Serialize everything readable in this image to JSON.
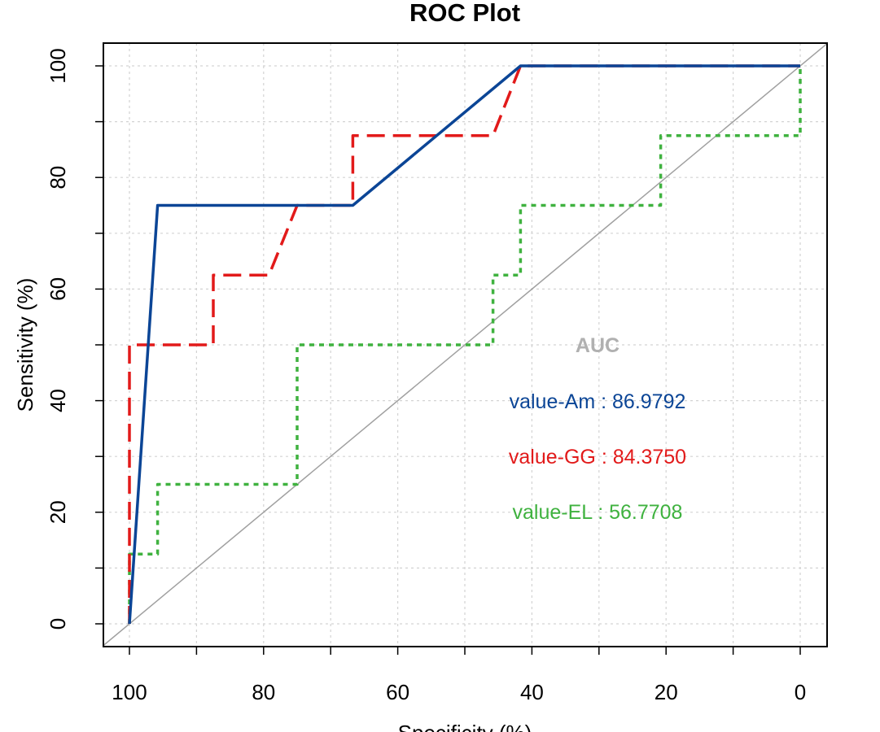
{
  "chart_data": {
    "type": "line",
    "title": "ROC Plot",
    "xlabel": "Specificity (%)",
    "ylabel": "Sensitivity (%)",
    "xlim": [
      100,
      0
    ],
    "ylim": [
      0,
      100
    ],
    "x_reversed": true,
    "grid": true,
    "xticks": [
      100,
      80,
      60,
      40,
      20,
      0
    ],
    "yticks": [
      0,
      20,
      40,
      60,
      80,
      100
    ],
    "diagonal_color": "#a0a0a0",
    "series": [
      {
        "color": "#0b4596",
        "dash": "solid",
        "x": [
          100,
          95.8,
          66.7,
          41.7,
          0
        ],
        "y": [
          0,
          75,
          75,
          100,
          100
        ]
      },
      {
        "color": "#e21a1a",
        "dash": "dashed",
        "x": [
          100,
          100,
          87.5,
          87.5,
          79.2,
          75,
          66.7,
          66.7,
          45.8,
          41.7,
          0
        ],
        "y": [
          0,
          50,
          50,
          62.5,
          62.5,
          75,
          75,
          87.5,
          87.5,
          100,
          100
        ]
      },
      {
        "color": "#3fb23f",
        "dash": "dotted",
        "x": [
          100,
          100,
          95.8,
          95.8,
          75,
          75,
          45.8,
          45.8,
          41.7,
          41.7,
          20.8,
          20.8,
          0,
          0
        ],
        "y": [
          0,
          12.5,
          12.5,
          25,
          25,
          50,
          50,
          62.5,
          62.5,
          75,
          75,
          87.5,
          87.5,
          100
        ]
      }
    ],
    "annotations": {
      "header": "AUC",
      "header_color": "#b0b0b0",
      "lines": [
        {
          "text": "value-Am : 86.9792",
          "color": "#0b4596"
        },
        {
          "text": "value-GG : 84.3750",
          "color": "#e21a1a"
        },
        {
          "text": "value-EL : 56.7708",
          "color": "#3fb23f"
        }
      ]
    }
  }
}
